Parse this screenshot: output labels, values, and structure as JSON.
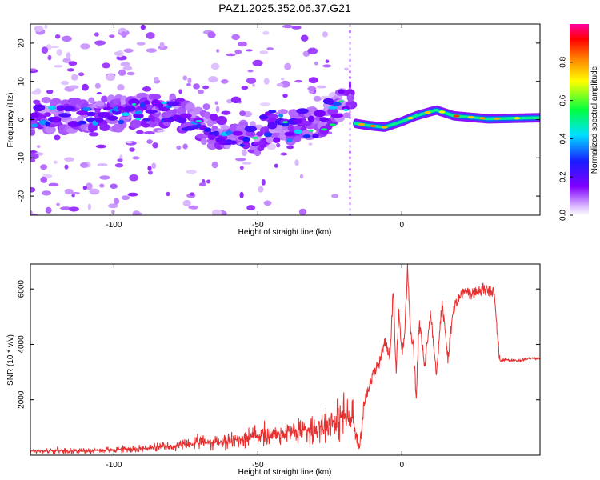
{
  "page": {
    "title": "PAZ1.2025.352.06.37.G21"
  },
  "chart_data": [
    {
      "type": "heatmap",
      "title": "PAZ1.2025.352.06.37.G21",
      "xlabel": "Height of straight line (km)",
      "ylabel": "Frequency (Hz)",
      "xlim": [
        -129,
        48
      ],
      "ylim": [
        -25,
        25
      ],
      "xticks": [
        -100,
        -50,
        0
      ],
      "yticks": [
        -20,
        -10,
        0,
        10,
        20
      ],
      "grid": false,
      "colorbar": {
        "label": "Normalized spectral amplitude",
        "range": [
          0,
          1
        ],
        "ticks": [
          0.0,
          0.2,
          0.4,
          0.6,
          0.8
        ],
        "tick_labels": [
          "0.0",
          "0.2",
          "0.4",
          "0.6",
          "0.8"
        ]
      },
      "ridge": [
        {
          "x": -129,
          "f": 0.5
        },
        {
          "x": -115,
          "f": 1.0
        },
        {
          "x": -100,
          "f": 1.5
        },
        {
          "x": -90,
          "f": 2.5
        },
        {
          "x": -80,
          "f": 2.0
        },
        {
          "x": -70,
          "f": -2.0
        },
        {
          "x": -60,
          "f": -4.5
        },
        {
          "x": -50,
          "f": -5.0
        },
        {
          "x": -45,
          "f": -1.0
        },
        {
          "x": -38,
          "f": -2.0
        },
        {
          "x": -30,
          "f": -1.0
        },
        {
          "x": -25,
          "f": 1.5
        },
        {
          "x": -20,
          "f": 5.5
        },
        {
          "x": -16,
          "f": -1.0
        },
        {
          "x": -12,
          "f": -1.5
        },
        {
          "x": -6,
          "f": -2.0
        },
        {
          "x": 0,
          "f": -0.5
        },
        {
          "x": 5,
          "f": 1.0
        },
        {
          "x": 12,
          "f": 2.5
        },
        {
          "x": 18,
          "f": 1.0
        },
        {
          "x": 30,
          "f": 0.2
        },
        {
          "x": 48,
          "f": 0.5
        }
      ]
    },
    {
      "type": "line",
      "xlabel": "Height of straight line (km)",
      "ylabel": "SNR (10 * v/v)",
      "xlim": [
        -129,
        48
      ],
      "ylim": [
        0,
        6900
      ],
      "xticks": [
        -100,
        -50,
        0
      ],
      "yticks": [
        2000,
        4000,
        6000
      ],
      "grid": false,
      "series": [
        {
          "color": "#e83030",
          "x": [
            -129,
            -120,
            -110,
            -100,
            -90,
            -80,
            -70,
            -60,
            -50,
            -40,
            -30,
            -25,
            -20,
            -17,
            -15,
            -14,
            -13,
            -12,
            -10,
            -8,
            -6,
            -4,
            -3,
            -2,
            -1,
            0,
            1,
            2,
            3,
            4,
            5,
            6,
            8,
            10,
            12,
            14,
            16,
            18,
            20,
            22,
            24,
            26,
            28,
            30,
            32,
            34,
            36,
            40,
            44,
            48
          ],
          "values": [
            150,
            160,
            160,
            200,
            250,
            300,
            450,
            500,
            700,
            800,
            1000,
            1200,
            1400,
            1300,
            200,
            800,
            2000,
            2300,
            2900,
            3300,
            4100,
            3600,
            6000,
            3000,
            5200,
            3700,
            4300,
            6800,
            4500,
            3900,
            2100,
            4800,
            3200,
            5200,
            3000,
            5500,
            3500,
            5300,
            5700,
            5900,
            5800,
            5900,
            6000,
            5900,
            5900,
            3400,
            3450,
            3400,
            3480,
            3480
          ]
        }
      ]
    }
  ]
}
